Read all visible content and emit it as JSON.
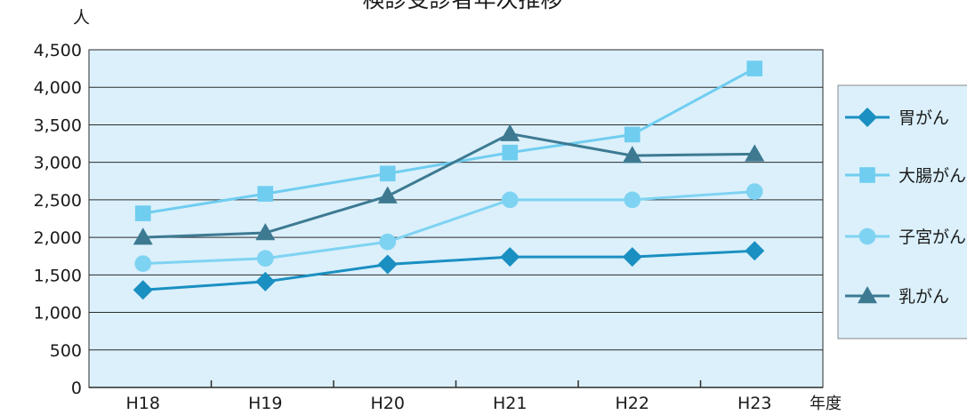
{
  "chart_data": {
    "type": "line",
    "title": "検診受診者年次推移",
    "ylabel": "人",
    "xlabel": "年度",
    "categories": [
      "H18",
      "H19",
      "H20",
      "H21",
      "H22",
      "H23"
    ],
    "ylim": [
      0,
      4500
    ],
    "yticks": [
      0,
      500,
      1000,
      1500,
      2000,
      2500,
      3000,
      3500,
      4000,
      4500
    ],
    "ytick_labels": [
      "0",
      "500",
      "1,000",
      "1,500",
      "2,000",
      "2,500",
      "3,000",
      "3,500",
      "4,000",
      "4,500"
    ],
    "grid": true,
    "legend": "right",
    "series": [
      {
        "name": "胃がん",
        "marker": "diamond",
        "color": "#1a8fc1",
        "values": [
          1300,
          1410,
          1640,
          1740,
          1740,
          1820
        ]
      },
      {
        "name": "大腸がん",
        "marker": "square",
        "color": "#6fcdf0",
        "values": [
          2320,
          2580,
          2850,
          3130,
          3370,
          4250
        ]
      },
      {
        "name": "子宮がん",
        "marker": "circle",
        "color": "#7fd3f2",
        "values": [
          1650,
          1720,
          1940,
          2500,
          2500,
          2610
        ]
      },
      {
        "name": "乳がん",
        "marker": "triangle",
        "color": "#3d7a92",
        "values": [
          2000,
          2060,
          2550,
          3380,
          3090,
          3110
        ]
      }
    ]
  },
  "colors": {
    "plot_background": "#dbf0fb",
    "legend_background": "#dbf0fb",
    "gridline": "#2b2b2b",
    "text": "#1a1a1a"
  }
}
